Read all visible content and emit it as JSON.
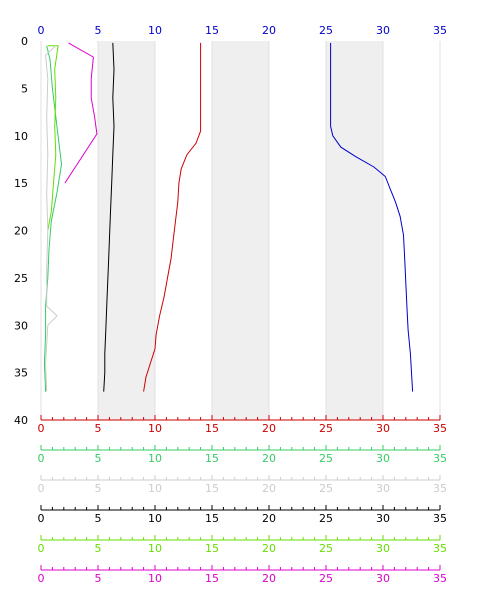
{
  "chart_data": {
    "type": "line",
    "orientation": "depth-profile",
    "x_range": [
      0,
      35
    ],
    "y_range": [
      0,
      40
    ],
    "y_inverted": true,
    "y_ticks": [
      0,
      5,
      10,
      15,
      20,
      25,
      30,
      35,
      40
    ],
    "x_ticks": [
      0,
      5,
      10,
      15,
      20,
      25,
      30,
      35
    ],
    "shaded_bands": [
      [
        5,
        10
      ],
      [
        15,
        20
      ],
      [
        25,
        30
      ]
    ],
    "top_axis": {
      "color": "#0000cc",
      "labels": [
        "0",
        "5",
        "10",
        "15",
        "20",
        "25",
        "30",
        "35"
      ]
    },
    "y_labels": [
      "0",
      "5",
      "10",
      "15",
      "20",
      "25",
      "30",
      "35",
      "40"
    ],
    "bottom_axes": [
      {
        "color": "#cc0000",
        "labels": [
          "0",
          "5",
          "10",
          "15",
          "20",
          "25",
          "30",
          "35"
        ]
      },
      {
        "color": "#33cc66",
        "labels": [
          "0",
          "5",
          "10",
          "15",
          "20",
          "25",
          "30",
          "35"
        ]
      },
      {
        "color": "#cccccc",
        "labels": [
          "0",
          "5",
          "10",
          "15",
          "20",
          "25",
          "30",
          "35"
        ]
      },
      {
        "color": "#000000",
        "labels": [
          "0",
          "5",
          "10",
          "15",
          "20",
          "25",
          "30",
          "35"
        ]
      },
      {
        "color": "#66dd00",
        "labels": [
          "0",
          "5",
          "10",
          "15",
          "20",
          "25",
          "30",
          "35"
        ]
      },
      {
        "color": "#dd00cc",
        "labels": [
          "0",
          "5",
          "10",
          "15",
          "20",
          "25",
          "30",
          "35"
        ]
      }
    ],
    "series": [
      {
        "color": "#0000cc",
        "points": [
          [
            25.4,
            0.2
          ],
          [
            25.4,
            9.0
          ],
          [
            25.6,
            10.0
          ],
          [
            26.3,
            11.2
          ],
          [
            27.6,
            12.2
          ],
          [
            29.2,
            13.3
          ],
          [
            30.2,
            14.3
          ],
          [
            30.6,
            15.5
          ],
          [
            31.1,
            17.0
          ],
          [
            31.5,
            18.5
          ],
          [
            31.8,
            20.5
          ],
          [
            31.9,
            23.0
          ],
          [
            32.0,
            25.5
          ],
          [
            32.1,
            28.0
          ],
          [
            32.2,
            30.5
          ],
          [
            32.4,
            33.0
          ],
          [
            32.5,
            35.0
          ],
          [
            32.6,
            37.0
          ]
        ]
      },
      {
        "color": "#cc0000",
        "points": [
          [
            14.0,
            0.2
          ],
          [
            14.0,
            9.5
          ],
          [
            13.6,
            10.8
          ],
          [
            12.8,
            12.0
          ],
          [
            12.3,
            13.5
          ],
          [
            12.1,
            15.0
          ],
          [
            12.0,
            17.0
          ],
          [
            11.8,
            19.0
          ],
          [
            11.6,
            21.0
          ],
          [
            11.4,
            23.0
          ],
          [
            11.1,
            25.0
          ],
          [
            10.8,
            27.0
          ],
          [
            10.4,
            29.0
          ],
          [
            10.1,
            31.0
          ],
          [
            10.0,
            32.5
          ],
          [
            9.6,
            34.0
          ],
          [
            9.2,
            35.5
          ],
          [
            9.0,
            37.0
          ]
        ]
      },
      {
        "color": "#000000",
        "points": [
          [
            6.3,
            0.2
          ],
          [
            6.4,
            3.0
          ],
          [
            6.3,
            6.0
          ],
          [
            6.4,
            9.0
          ],
          [
            6.3,
            12.0
          ],
          [
            6.2,
            15.0
          ],
          [
            6.1,
            18.0
          ],
          [
            6.0,
            21.0
          ],
          [
            5.9,
            24.0
          ],
          [
            5.8,
            27.0
          ],
          [
            5.7,
            30.0
          ],
          [
            5.6,
            33.0
          ],
          [
            5.6,
            35.0
          ],
          [
            5.5,
            37.0
          ]
        ]
      },
      {
        "color": "#dd00cc",
        "points": [
          [
            2.4,
            0.2
          ],
          [
            4.6,
            1.7
          ],
          [
            4.4,
            4.0
          ],
          [
            4.4,
            6.0
          ],
          [
            4.7,
            8.0
          ],
          [
            4.9,
            9.8
          ],
          [
            2.1,
            15.0
          ]
        ]
      },
      {
        "color": "#33cc66",
        "points": [
          [
            0.5,
            0.5
          ],
          [
            0.8,
            2.0
          ],
          [
            1.0,
            5.0
          ],
          [
            1.3,
            8.0
          ],
          [
            1.6,
            11.0
          ],
          [
            1.8,
            13.0
          ],
          [
            1.4,
            16.0
          ],
          [
            0.9,
            19.0
          ],
          [
            0.7,
            22.0
          ],
          [
            0.6,
            25.0
          ],
          [
            0.4,
            28.0
          ],
          [
            0.4,
            31.0
          ],
          [
            0.3,
            34.0
          ],
          [
            0.4,
            37.0
          ]
        ]
      },
      {
        "color": "#66dd00",
        "points": [
          [
            0.6,
            0.5
          ],
          [
            1.5,
            0.5
          ],
          [
            1.2,
            3.0
          ],
          [
            1.3,
            6.0
          ],
          [
            1.2,
            9.0
          ],
          [
            1.3,
            12.0
          ],
          [
            1.1,
            15.0
          ],
          [
            0.9,
            18.0
          ],
          [
            0.6,
            20.0
          ]
        ]
      },
      {
        "color": "#cccccc",
        "points": [
          [
            1.3,
            0.5
          ],
          [
            0.4,
            1.5
          ],
          [
            0.6,
            4.0
          ],
          [
            0.5,
            8.0
          ],
          [
            0.6,
            12.0
          ],
          [
            0.5,
            16.0
          ],
          [
            0.6,
            20.0
          ],
          [
            0.5,
            24.0
          ],
          [
            0.5,
            28.0
          ],
          [
            1.4,
            29.0
          ],
          [
            0.6,
            30.0
          ],
          [
            0.4,
            34.0
          ],
          [
            0.5,
            37.0
          ]
        ]
      }
    ]
  }
}
